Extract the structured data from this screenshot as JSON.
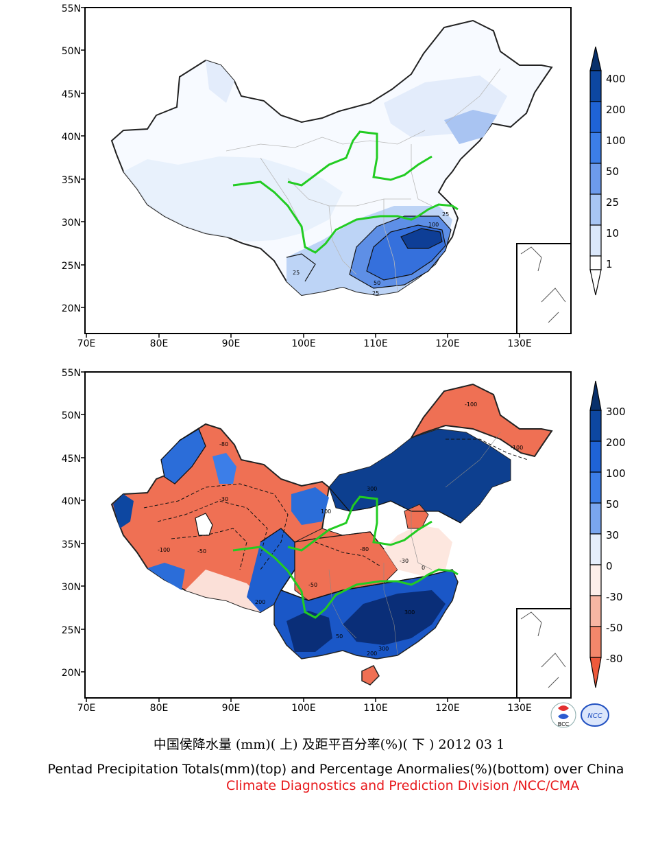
{
  "top_map": {
    "lat_labels": [
      "55N",
      "50N",
      "45N",
      "40N",
      "35N",
      "30N",
      "25N",
      "20N"
    ],
    "lon_labels": [
      "70E",
      "80E",
      "90E",
      "100E",
      "110E",
      "120E",
      "130E"
    ],
    "colorbar_labels": [
      "400",
      "200",
      "100",
      "50",
      "25",
      "10",
      "1"
    ],
    "colorbar_colors": [
      "#08306b",
      "#0d47a1",
      "#1f63d6",
      "#3c7ee8",
      "#6d9bec",
      "#a8c6f4",
      "#dbe8fb",
      "#ffffff"
    ],
    "contour_labels": [
      "25",
      "100",
      "25",
      "50",
      "25"
    ]
  },
  "bottom_map": {
    "lat_labels": [
      "55N",
      "50N",
      "45N",
      "40N",
      "35N",
      "30N",
      "25N",
      "20N"
    ],
    "lon_labels": [
      "70E",
      "80E",
      "90E",
      "100E",
      "110E",
      "120E",
      "130E"
    ],
    "colorbar_labels": [
      "300",
      "200",
      "100",
      "50",
      "30",
      "0",
      "-30",
      "-50",
      "-80"
    ],
    "colorbar_colors": [
      "#08306b",
      "#0d47a1",
      "#1f63d6",
      "#3c7ee8",
      "#7aa6ef",
      "#e6eefb",
      "#fdeee9",
      "#f7b6a3",
      "#f3876b",
      "#ee5a3c"
    ],
    "contour_labels": [
      "-100",
      "-80",
      "100",
      "300",
      "-50",
      "-30",
      "0",
      "200",
      "300",
      "-80",
      "-100",
      "-50",
      "-30",
      "50",
      "200",
      "300",
      "-100"
    ]
  },
  "titles": {
    "chinese": "中国侯降水量 (mm)( 上) 及距平百分率(%)( 下 ) 2012 03 1",
    "english": "Pentad Precipitation Totals(mm)(top) and Percentage Anormalies(%)(bottom) over China",
    "credit": "Climate Diagnostics and Prediction Division /NCC/CMA"
  },
  "logos": [
    "BCC",
    "NCC"
  ]
}
